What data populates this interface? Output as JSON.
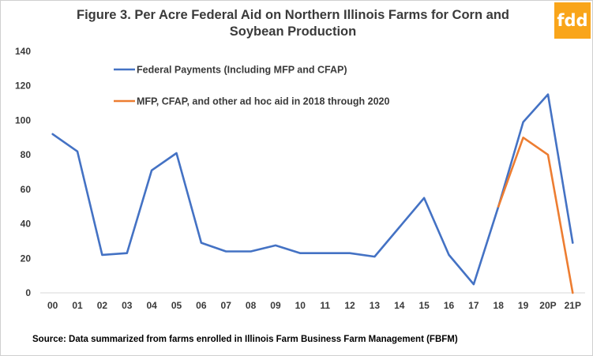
{
  "title": "Figure 3. Per Acre Federal Aid on Northern Illinois Farms for Corn and Soybean Production",
  "logo_text": "fdd",
  "source": "Source:  Data summarized from farms enrolled in Illinois Farm Business Farm Management (FBFM)",
  "colors": {
    "federal": "#4472c4",
    "adhoc": "#ed7d31",
    "logo": "#f9a51a"
  },
  "chart_data": {
    "type": "line",
    "title": "Figure 3. Per Acre Federal Aid on Northern Illinois Farms for Corn and Soybean Production",
    "xlabel": "",
    "ylabel": "",
    "categories": [
      "00",
      "01",
      "02",
      "03",
      "04",
      "05",
      "06",
      "07",
      "08",
      "09",
      "10",
      "11",
      "12",
      "13",
      "14",
      "15",
      "16",
      "17",
      "18",
      "19",
      "20P",
      "21P"
    ],
    "ylim": [
      0,
      140
    ],
    "yticks": [
      0,
      20,
      40,
      60,
      80,
      100,
      120,
      140
    ],
    "grid": false,
    "legend_position": "top-left",
    "series": [
      {
        "name": "Federal Payments (Including MFP and CFAP)",
        "color": "#4472c4",
        "values": [
          92,
          82,
          22,
          23,
          71,
          81,
          29,
          24,
          24,
          27.5,
          23,
          23,
          23,
          21,
          38,
          55,
          22,
          5,
          50,
          99,
          115,
          29
        ]
      },
      {
        "name": "MFP, CFAP, and other ad hoc aid in 2018 through 2020",
        "color": "#ed7d31",
        "values": [
          null,
          null,
          null,
          null,
          null,
          null,
          null,
          null,
          null,
          null,
          null,
          null,
          null,
          null,
          null,
          null,
          null,
          null,
          50,
          90,
          80,
          0
        ]
      }
    ]
  }
}
